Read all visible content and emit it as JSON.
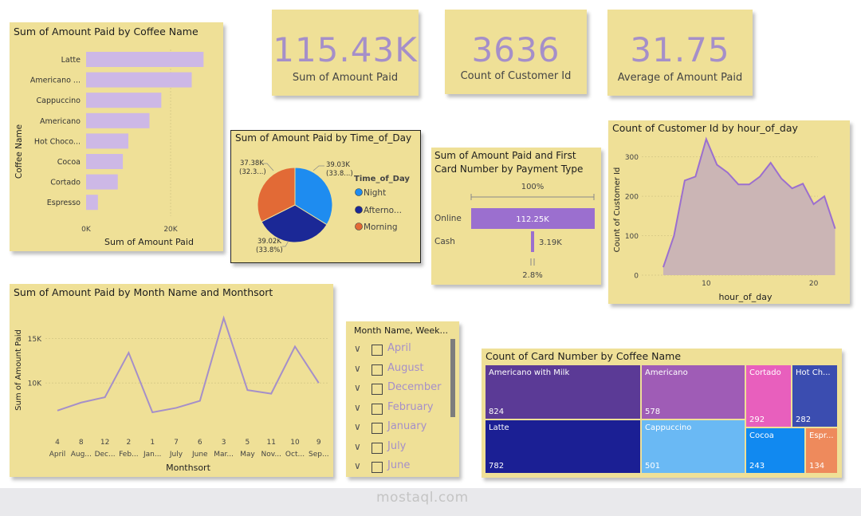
{
  "kpis": [
    {
      "value": "115.43K",
      "label": "Sum of Amount Paid"
    },
    {
      "value": "3636",
      "label": "Count of Customer Id"
    },
    {
      "value": "31.75",
      "label": "Average of Amount Paid"
    }
  ],
  "bar_card": {
    "title": "Sum of Amount Paid by Coffee Name",
    "ylabel": "Coffee Name",
    "xlabel": "Sum of Amount Paid",
    "ticks": [
      "0K",
      "20K"
    ]
  },
  "pie_card": {
    "title": "Sum of Amount Paid by Time_of_Day",
    "legend_title": "Time_of_Day",
    "legend": [
      "Night",
      "Afterno...",
      "Morning"
    ],
    "labels": [
      {
        "value": "39.03K",
        "pct": "(33.8...)"
      },
      {
        "value": "39.02K",
        "pct": "(33.8%)"
      },
      {
        "value": "37.38K",
        "pct": "(32.3...)"
      }
    ]
  },
  "payment_card": {
    "title_line1": "Sum of Amount Paid and First",
    "title_line2": "Card Number by Payment Type",
    "top_pct": "100%",
    "bottom_pct": "2.8%",
    "rows": [
      {
        "label": "Online",
        "value": "112.25K"
      },
      {
        "label": "Cash",
        "value": "3.19K"
      }
    ]
  },
  "area_card": {
    "title": "Count of Customer Id by hour_of_day",
    "ylabel": "Count of Customer Id",
    "xlabel": "hour_of_day",
    "yticks": [
      "0",
      "100",
      "200",
      "300"
    ],
    "xticks": [
      "10",
      "20"
    ]
  },
  "line_card": {
    "title": "Sum of Amount Paid by Month Name and Monthsort",
    "ylabel": "Sum of Amount Paid",
    "xlabel": "Monthsort",
    "yticks": [
      "10K",
      "15K"
    ]
  },
  "slicer": {
    "title": "Month Name, Week...",
    "items": [
      "April",
      "August",
      "December",
      "February",
      "January",
      "July",
      "June"
    ]
  },
  "treemap": {
    "title": "Count of Card Number by Coffee Name",
    "cells": [
      {
        "name": "Americano with Milk",
        "value": "824",
        "color": "#5b3a96"
      },
      {
        "name": "Latte",
        "value": "782",
        "color": "#1b1f94"
      },
      {
        "name": "Americano",
        "value": "578",
        "color": "#9f5cb6"
      },
      {
        "name": "Cappuccino",
        "value": "501",
        "color": "#6ab9f4"
      },
      {
        "name": "Cortado",
        "value": "292",
        "color": "#e85fbd"
      },
      {
        "name": "Hot Ch...",
        "value": "282",
        "color": "#3b4db0"
      },
      {
        "name": "Cocoa",
        "value": "243",
        "color": "#1189f0"
      },
      {
        "name": "Espr...",
        "value": "134",
        "color": "#ee8a5c"
      }
    ]
  },
  "watermark": "mostaql.com",
  "colors": {
    "card_bg": "#efe097",
    "accent": "#a58fc9",
    "bar": "#cdb8e6",
    "line": "#a58fc9"
  },
  "chart_data": [
    {
      "type": "bar",
      "orientation": "horizontal",
      "title": "Sum of Amount Paid by Coffee Name",
      "categories": [
        "Latte",
        "Americano ...",
        "Cappuccino",
        "Americano",
        "Hot Choco...",
        "Cocoa",
        "Cortado",
        "Espresso"
      ],
      "values": [
        27800,
        25000,
        17800,
        15000,
        10000,
        8700,
        7500,
        2800
      ],
      "xlim": [
        0,
        40000
      ],
      "xlabel": "Sum of Amount Paid",
      "ylabel": "Coffee Name"
    },
    {
      "type": "pie",
      "title": "Sum of Amount Paid by Time_of_Day",
      "categories": [
        "Night",
        "Afterno...",
        "Morning"
      ],
      "values": [
        39030,
        39020,
        37380
      ],
      "colors": [
        "#1e8cf0",
        "#1b2896",
        "#e26a36"
      ]
    },
    {
      "type": "bar",
      "orientation": "horizontal",
      "title": "Sum of Amount Paid and First Card Number by Payment Type",
      "categories": [
        "Online",
        "Cash"
      ],
      "values": [
        112250,
        3190
      ]
    },
    {
      "type": "area",
      "title": "Count of Customer Id by hour_of_day",
      "x": [
        6,
        7,
        8,
        9,
        10,
        11,
        12,
        13,
        14,
        15,
        16,
        17,
        18,
        19,
        20,
        21,
        22
      ],
      "y": [
        20,
        100,
        240,
        250,
        345,
        280,
        260,
        230,
        230,
        250,
        285,
        245,
        220,
        232,
        180,
        200,
        118
      ],
      "xlim": [
        4,
        23
      ],
      "ylim": [
        0,
        360
      ],
      "xlabel": "hour_of_day",
      "ylabel": "Count of Customer Id"
    },
    {
      "type": "line",
      "title": "Sum of Amount Paid by Month Name and Monthsort",
      "categories": [
        "4",
        "8",
        "12",
        "2",
        "1",
        "7",
        "6",
        "3",
        "5",
        "11",
        "10",
        "9"
      ],
      "category_names": [
        "April",
        "Aug...",
        "Dec...",
        "Feb...",
        "Jan...",
        "July",
        "June",
        "Mar...",
        "May",
        "Nov...",
        "Oct...",
        "Sep..."
      ],
      "values": [
        6900,
        7800,
        8400,
        13400,
        6700,
        7200,
        8000,
        17300,
        9200,
        8800,
        14100,
        10000
      ],
      "ylim": [
        5000,
        18000
      ],
      "xlabel": "Monthsort",
      "ylabel": "Sum of Amount Paid"
    },
    {
      "type": "treemap",
      "title": "Count of Card Number by Coffee Name",
      "categories": [
        "Americano with Milk",
        "Latte",
        "Americano",
        "Cappuccino",
        "Cortado",
        "Hot Ch...",
        "Cocoa",
        "Espr..."
      ],
      "values": [
        824,
        782,
        578,
        501,
        292,
        282,
        243,
        134
      ]
    }
  ]
}
